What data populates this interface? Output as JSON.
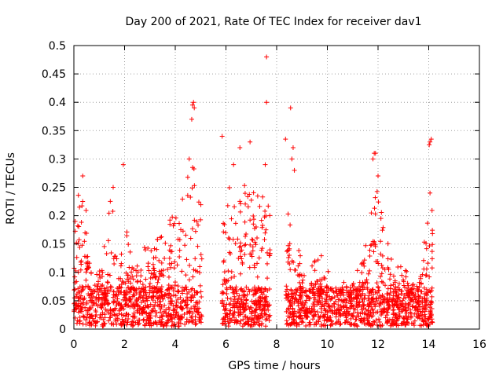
{
  "chart_data": {
    "type": "scatter",
    "title": "Day 200 of 2021, Rate Of TEC Index for receiver dav1",
    "xlabel": "GPS time / hours",
    "ylabel": "ROTI / TECUs",
    "xlim": [
      0,
      16
    ],
    "ylim": [
      0,
      0.5
    ],
    "x_ticks": [
      0,
      2,
      4,
      6,
      8,
      10,
      12,
      14,
      16
    ],
    "y_ticks": [
      0,
      0.05,
      0.1,
      0.15,
      0.2,
      0.25,
      0.3,
      0.35,
      0.4,
      0.45,
      0.5
    ],
    "x_tick_labels": [
      "0",
      "2",
      "4",
      "6",
      "8",
      "10",
      "12",
      "14",
      "16"
    ],
    "y_tick_labels": [
      "0",
      "0.05",
      "0.1",
      "0.15",
      "0.2",
      "0.25",
      "0.3",
      "0.35",
      "0.4",
      "0.45",
      "0.5"
    ],
    "grid": true,
    "marker": "+",
    "marker_color": "#ff0000",
    "series": [
      {
        "data_segments_hours": [
          [
            0.0,
            5.05
          ],
          [
            5.85,
            7.75
          ],
          [
            8.35,
            14.15
          ]
        ],
        "envelope": [
          [
            0.0,
            0.15
          ],
          [
            0.2,
            0.26
          ],
          [
            0.4,
            0.27
          ],
          [
            0.6,
            0.12
          ],
          [
            0.8,
            0.1
          ],
          [
            1.0,
            0.14
          ],
          [
            1.2,
            0.15
          ],
          [
            1.4,
            0.23
          ],
          [
            1.6,
            0.22
          ],
          [
            1.8,
            0.15
          ],
          [
            2.0,
            0.2
          ],
          [
            2.2,
            0.14
          ],
          [
            2.4,
            0.13
          ],
          [
            2.6,
            0.15
          ],
          [
            2.8,
            0.16
          ],
          [
            3.0,
            0.16
          ],
          [
            3.2,
            0.15
          ],
          [
            3.4,
            0.17
          ],
          [
            3.6,
            0.18
          ],
          [
            3.8,
            0.2
          ],
          [
            4.0,
            0.21
          ],
          [
            4.2,
            0.23
          ],
          [
            4.4,
            0.24
          ],
          [
            4.6,
            0.3
          ],
          [
            4.8,
            0.29
          ],
          [
            5.0,
            0.28
          ],
          [
            5.9,
            0.26
          ],
          [
            6.1,
            0.26
          ],
          [
            6.3,
            0.28
          ],
          [
            6.5,
            0.27
          ],
          [
            6.7,
            0.26
          ],
          [
            6.9,
            0.25
          ],
          [
            7.1,
            0.26
          ],
          [
            7.3,
            0.25
          ],
          [
            7.5,
            0.23
          ],
          [
            7.7,
            0.22
          ],
          [
            8.4,
            0.22
          ],
          [
            8.6,
            0.2
          ],
          [
            8.8,
            0.15
          ],
          [
            9.0,
            0.12
          ],
          [
            9.2,
            0.1
          ],
          [
            9.4,
            0.12
          ],
          [
            9.6,
            0.13
          ],
          [
            9.8,
            0.14
          ],
          [
            10.0,
            0.12
          ],
          [
            10.2,
            0.09
          ],
          [
            10.4,
            0.1
          ],
          [
            10.6,
            0.09
          ],
          [
            10.8,
            0.1
          ],
          [
            11.0,
            0.09
          ],
          [
            11.2,
            0.11
          ],
          [
            11.4,
            0.12
          ],
          [
            11.6,
            0.17
          ],
          [
            11.8,
            0.24
          ],
          [
            12.0,
            0.25
          ],
          [
            12.2,
            0.2
          ],
          [
            12.4,
            0.15
          ],
          [
            12.6,
            0.11
          ],
          [
            12.8,
            0.12
          ],
          [
            13.0,
            0.11
          ],
          [
            13.2,
            0.1
          ],
          [
            13.4,
            0.09
          ],
          [
            13.6,
            0.09
          ],
          [
            13.8,
            0.15
          ],
          [
            14.0,
            0.22
          ],
          [
            14.1,
            0.23
          ]
        ],
        "outliers": [
          [
            0.05,
            0.19
          ],
          [
            0.35,
            0.27
          ],
          [
            1.55,
            0.25
          ],
          [
            1.95,
            0.29
          ],
          [
            4.65,
            0.37
          ],
          [
            4.72,
            0.4
          ],
          [
            4.68,
            0.395
          ],
          [
            4.75,
            0.39
          ],
          [
            4.55,
            0.3
          ],
          [
            5.85,
            0.34
          ],
          [
            6.55,
            0.32
          ],
          [
            6.95,
            0.33
          ],
          [
            6.3,
            0.29
          ],
          [
            7.6,
            0.48
          ],
          [
            7.6,
            0.4
          ],
          [
            7.55,
            0.29
          ],
          [
            8.35,
            0.335
          ],
          [
            8.55,
            0.39
          ],
          [
            8.65,
            0.32
          ],
          [
            8.6,
            0.3
          ],
          [
            8.7,
            0.28
          ],
          [
            11.85,
            0.31
          ],
          [
            11.9,
            0.31
          ],
          [
            11.8,
            0.3
          ],
          [
            12.0,
            0.27
          ],
          [
            14.05,
            0.33
          ],
          [
            14.1,
            0.335
          ],
          [
            14.02,
            0.325
          ],
          [
            14.05,
            0.24
          ]
        ]
      }
    ]
  }
}
